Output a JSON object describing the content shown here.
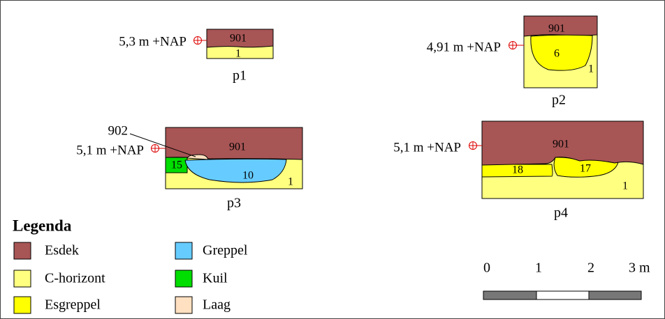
{
  "profiles": [
    {
      "label": "p1",
      "nap": "5,3 m +NAP",
      "layers": [
        "901",
        "1"
      ]
    },
    {
      "label": "p2",
      "nap": "4,91 m +NAP",
      "layers": [
        "901",
        "6",
        "1"
      ]
    },
    {
      "label": "p3",
      "nap": "5,1 m +NAP",
      "annotation": "902",
      "layers": [
        "901",
        "15",
        "10",
        "1"
      ]
    },
    {
      "label": "p4",
      "nap": "5,1 m +NAP",
      "layers": [
        "901",
        "18",
        "17",
        "1"
      ]
    }
  ],
  "legend": {
    "title": "Legenda",
    "items": [
      "Esdek",
      "C-horizont",
      "Esgreppel",
      "Greppel",
      "Kuil",
      "Laag"
    ]
  },
  "scale": {
    "labels": [
      "0",
      "1",
      "2",
      "3 m"
    ]
  }
}
